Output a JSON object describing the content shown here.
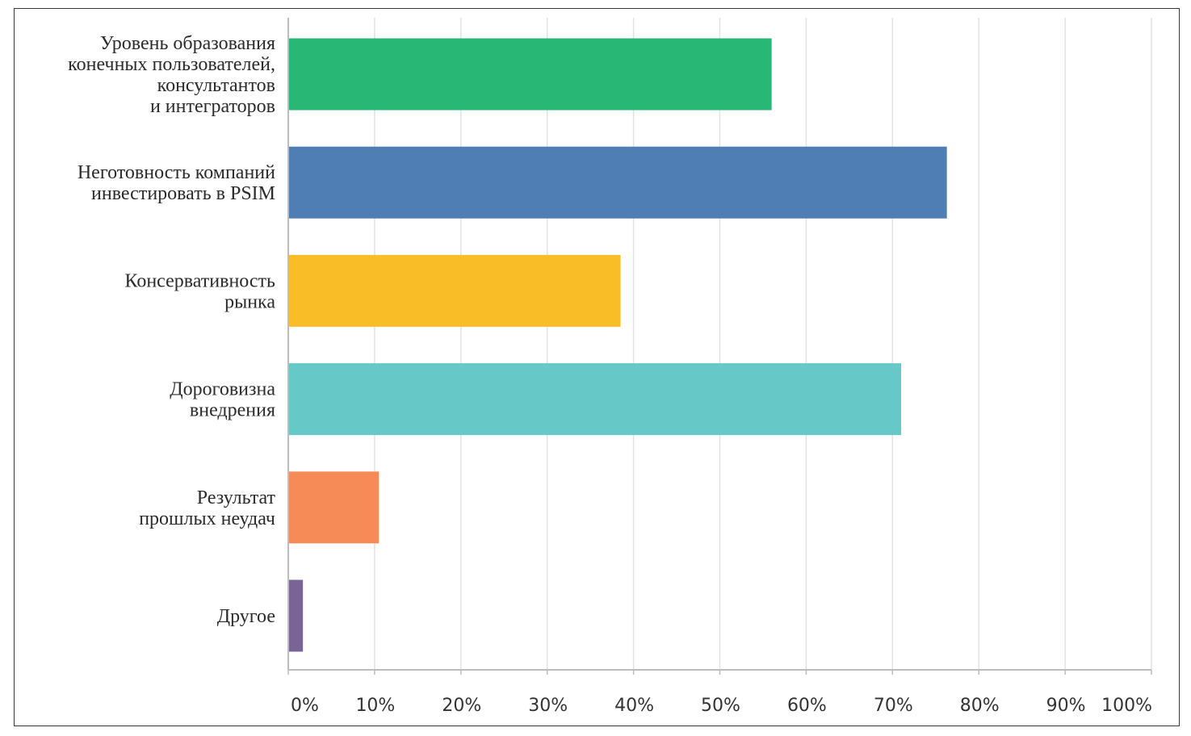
{
  "chart_data": {
    "type": "bar",
    "orientation": "horizontal",
    "categories": [
      [
        "Уровень образования",
        "конечных пользователей,",
        "консультантов",
        "и интеграторов"
      ],
      [
        "Неготовность компаний",
        "инвестировать в PSIM"
      ],
      [
        "Консервативность",
        "рынка"
      ],
      [
        "Дороговизна",
        "внедрения"
      ],
      [
        "Результат",
        "прошлых неудач"
      ],
      [
        "Другое"
      ]
    ],
    "values": [
      56,
      76.3,
      38.5,
      71,
      10.5,
      1.7
    ],
    "colors": [
      "#28b774",
      "#4f7eb5",
      "#f9be27",
      "#67c8c8",
      "#f68b57",
      "#7a6496"
    ],
    "xlim": [
      0,
      100
    ],
    "x_ticks": [
      "0%",
      "10%",
      "20%",
      "30%",
      "40%",
      "50%",
      "60%",
      "70%",
      "80%",
      "90%",
      "100%"
    ],
    "grid": true,
    "title": "",
    "xlabel": "",
    "ylabel": ""
  }
}
